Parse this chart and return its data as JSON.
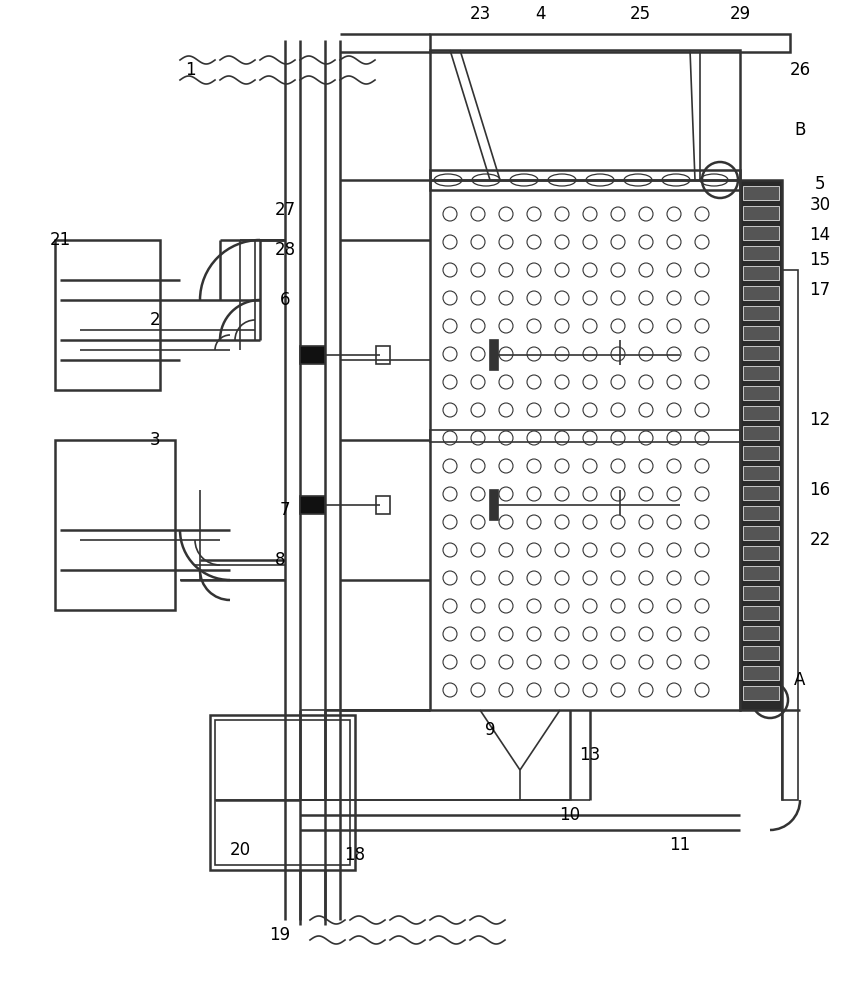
{
  "bg_color": "#ffffff",
  "line_color": "#333333",
  "dark_fill": "#1a1a1a",
  "gray_fill": "#888888",
  "light_gray": "#cccccc",
  "fig_width": 8.42,
  "fig_height": 10.0,
  "dpi": 100
}
